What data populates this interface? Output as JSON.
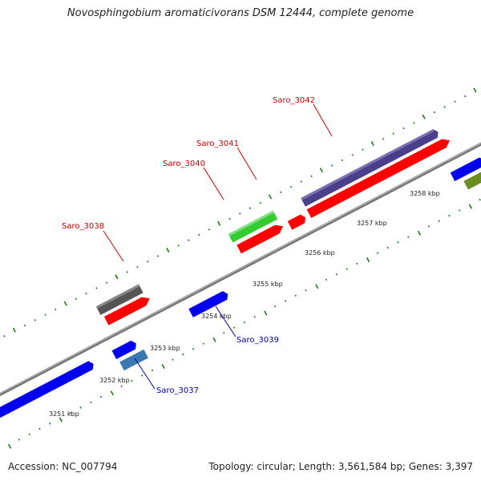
{
  "title": "Novosphingobium aromaticivorans DSM 12444, complete genome",
  "footer": {
    "accession": "Accession: NC_007794",
    "summary": "Topology: circular; Length: 3,561,584 bp; Genes: 3,397"
  },
  "colors": {
    "backbone": "#888888",
    "tick": "#1a7a1a",
    "forward_label": "#cc0000",
    "reverse_label": "#0000aa",
    "cds_red": "#ff0000",
    "cds_blue": "#0000ee",
    "cds_gray": "#555555",
    "cds_green": "#33cc33",
    "cds_purple": "#4a3f8a",
    "cds_steel": "#3a78b0",
    "cds_olive": "#6b8e23"
  },
  "scale_labels": [
    "3251 kbp",
    "3252 kbp",
    "3253 kbp",
    "3254 kbp",
    "3255 kbp",
    "3256 kbp",
    "3257 kbp",
    "3258 kbp"
  ],
  "gene_labels": {
    "forward": [
      "Saro_3038",
      "Saro_3040",
      "Saro_3041",
      "Saro_3042"
    ],
    "reverse": [
      "Saro_3037",
      "Saro_3039"
    ]
  }
}
